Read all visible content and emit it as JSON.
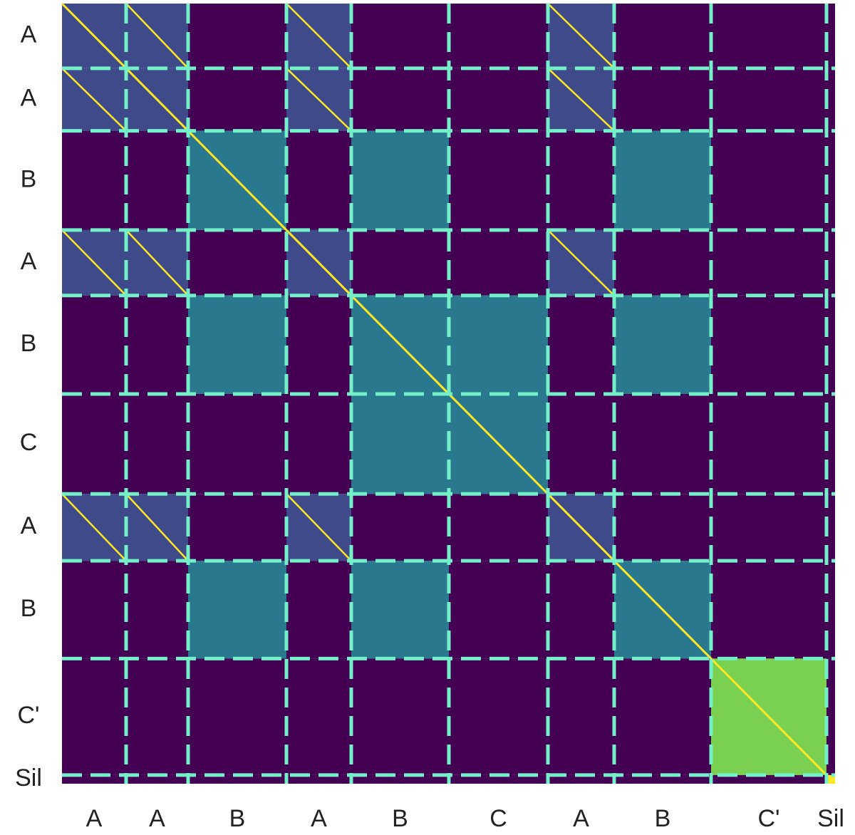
{
  "chart_data": {
    "type": "segment-matrix",
    "labels": [
      "A",
      "A",
      "B",
      "A",
      "B",
      "C",
      "A",
      "B",
      "C'",
      "Sil"
    ],
    "boundaries": [
      0,
      90,
      177,
      315,
      406,
      543,
      682,
      775,
      911,
      1073,
      1085
    ],
    "colors": [
      "#440154",
      "#3e4a89",
      "#2a788e",
      "#7ad151",
      "#fde725"
    ],
    "matrix": [
      [
        1,
        1,
        0,
        1,
        0,
        0,
        1,
        0,
        0,
        0
      ],
      [
        1,
        1,
        0,
        1,
        0,
        0,
        1,
        0,
        0,
        0
      ],
      [
        0,
        0,
        2,
        0,
        2,
        0,
        0,
        2,
        0,
        0
      ],
      [
        1,
        1,
        0,
        1,
        0,
        0,
        1,
        0,
        0,
        0
      ],
      [
        0,
        0,
        2,
        0,
        2,
        2,
        0,
        2,
        0,
        0
      ],
      [
        0,
        0,
        0,
        0,
        2,
        2,
        0,
        0,
        0,
        0
      ],
      [
        1,
        1,
        0,
        1,
        0,
        0,
        1,
        0,
        0,
        0
      ],
      [
        0,
        0,
        2,
        0,
        2,
        0,
        0,
        2,
        0,
        0
      ],
      [
        0,
        0,
        0,
        0,
        0,
        0,
        0,
        0,
        3,
        0
      ],
      [
        0,
        0,
        0,
        0,
        0,
        0,
        0,
        0,
        0,
        4
      ]
    ]
  }
}
